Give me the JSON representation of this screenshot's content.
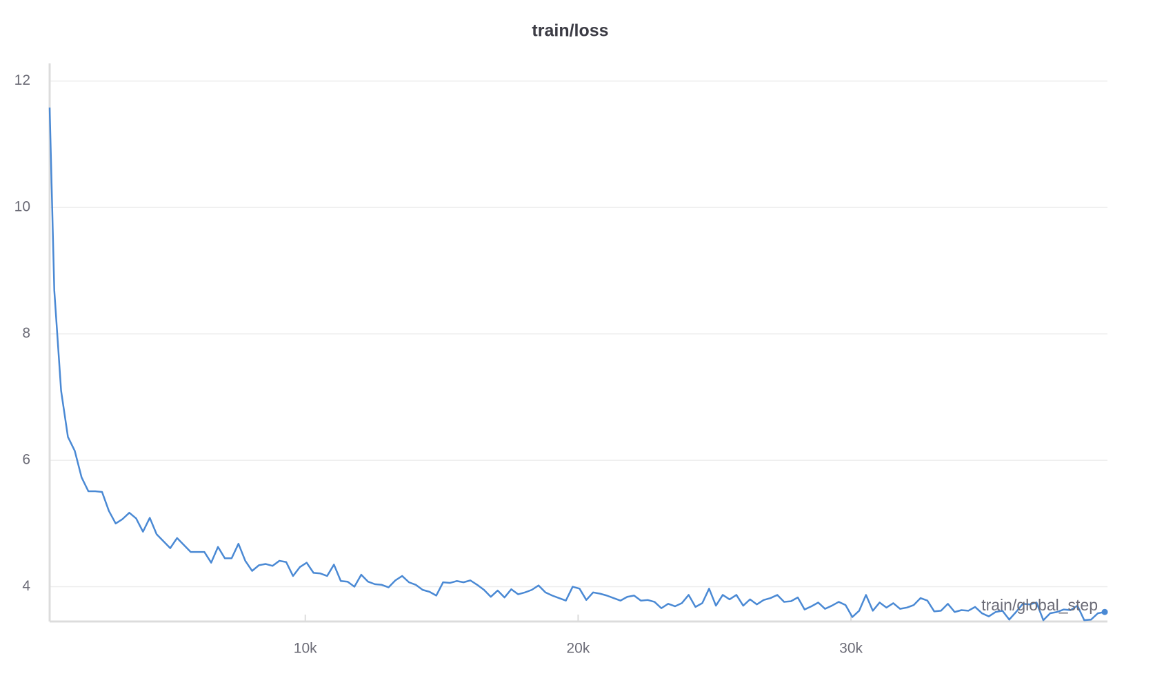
{
  "chart_data": {
    "type": "line",
    "title": "train/loss",
    "x_label": "train/global_step",
    "xlim": [
      630,
      39400
    ],
    "ylim": [
      3.45,
      12.28
    ],
    "xticks": [
      {
        "value": 10000,
        "label": "10k"
      },
      {
        "value": 20000,
        "label": "20k"
      },
      {
        "value": 30000,
        "label": "30k"
      }
    ],
    "yticks": [
      4,
      6,
      8,
      10,
      12
    ],
    "grid": true,
    "x": [
      630,
      800,
      1050,
      1300,
      1550,
      1800,
      2050,
      2300,
      2550,
      2800,
      3050,
      3300,
      3550,
      3800,
      4050,
      4300,
      4550,
      4800,
      5050,
      5300,
      5550,
      5800,
      6050,
      6300,
      6550,
      6800,
      7050,
      7300,
      7550,
      7800,
      8050,
      8300,
      8550,
      8800,
      9050,
      9300,
      9550,
      9800,
      10050,
      10300,
      10550,
      10800,
      11050,
      11300,
      11550,
      11800,
      12050,
      12300,
      12550,
      12800,
      13050,
      13300,
      13550,
      13800,
      14050,
      14300,
      14550,
      14800,
      15050,
      15300,
      15550,
      15800,
      16050,
      16300,
      16550,
      16800,
      17050,
      17300,
      17550,
      17800,
      18050,
      18300,
      18550,
      18800,
      19050,
      19300,
      19550,
      19800,
      20050,
      20300,
      20550,
      20800,
      21050,
      21300,
      21550,
      21800,
      22050,
      22300,
      22550,
      22800,
      23050,
      23300,
      23550,
      23800,
      24050,
      24300,
      24550,
      24800,
      25050,
      25300,
      25550,
      25800,
      26050,
      26300,
      26550,
      26800,
      27050,
      27300,
      27550,
      27800,
      28050,
      28300,
      28550,
      28800,
      29050,
      29300,
      29550,
      29800,
      30050,
      30300,
      30550,
      30800,
      31050,
      31300,
      31550,
      31800,
      32050,
      32300,
      32550,
      32800,
      33050,
      33300,
      33550,
      33800,
      34050,
      34300,
      34550,
      34800,
      35050,
      35300,
      35550,
      35800,
      36050,
      36300,
      36550,
      36800,
      37050,
      37300,
      37550,
      37800,
      38050,
      38300,
      38550,
      38800,
      39050,
      39300
    ],
    "series": [
      {
        "color": "#4a89d4",
        "values": [
          11.58,
          8.69,
          7.1,
          6.37,
          6.15,
          5.73,
          5.51,
          5.51,
          5.5,
          5.2,
          5.0,
          5.07,
          5.17,
          5.08,
          4.87,
          5.09,
          4.83,
          4.72,
          4.61,
          4.77,
          4.66,
          4.55,
          4.55,
          4.55,
          4.38,
          4.63,
          4.45,
          4.45,
          4.68,
          4.41,
          4.25,
          4.34,
          4.36,
          4.33,
          4.41,
          4.39,
          4.17,
          4.31,
          4.38,
          4.22,
          4.21,
          4.17,
          4.35,
          4.09,
          4.08,
          4.0,
          4.19,
          4.08,
          4.04,
          4.03,
          3.99,
          4.1,
          4.17,
          4.07,
          4.03,
          3.95,
          3.92,
          3.86,
          4.07,
          4.06,
          4.09,
          4.07,
          4.1,
          4.03,
          3.95,
          3.84,
          3.94,
          3.83,
          3.96,
          3.88,
          3.91,
          3.95,
          4.02,
          3.91,
          3.86,
          3.82,
          3.78,
          4.0,
          3.97,
          3.79,
          3.91,
          3.89,
          3.86,
          3.82,
          3.78,
          3.84,
          3.86,
          3.78,
          3.79,
          3.76,
          3.66,
          3.73,
          3.69,
          3.74,
          3.87,
          3.68,
          3.74,
          3.97,
          3.7,
          3.87,
          3.8,
          3.87,
          3.7,
          3.8,
          3.72,
          3.79,
          3.82,
          3.87,
          3.76,
          3.77,
          3.83,
          3.64,
          3.69,
          3.75,
          3.65,
          3.7,
          3.76,
          3.71,
          3.52,
          3.62,
          3.87,
          3.62,
          3.75,
          3.67,
          3.74,
          3.65,
          3.67,
          3.71,
          3.82,
          3.78,
          3.61,
          3.62,
          3.73,
          3.6,
          3.63,
          3.62,
          3.68,
          3.58,
          3.53,
          3.6,
          3.62,
          3.48,
          3.6,
          3.73,
          3.72,
          3.75,
          3.47,
          3.58,
          3.6,
          3.64,
          3.63,
          3.7,
          3.47,
          3.48,
          3.58,
          3.6
        ]
      }
    ]
  }
}
